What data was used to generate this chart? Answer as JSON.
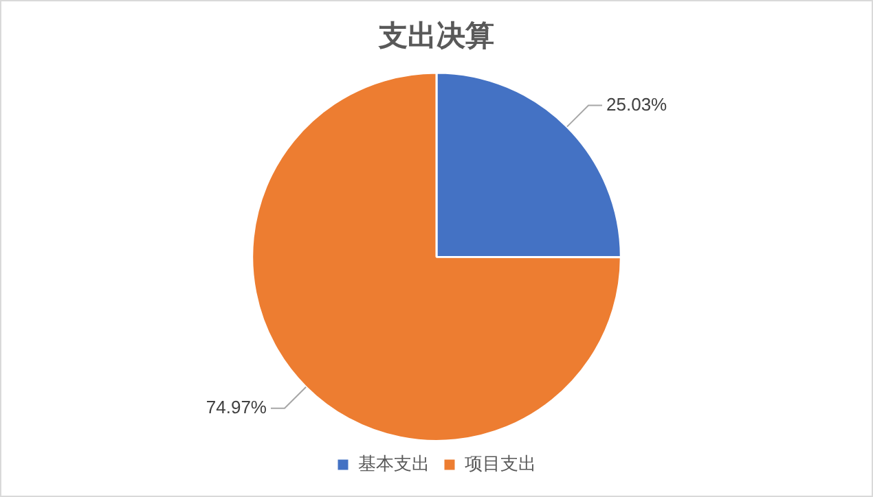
{
  "chart_data": {
    "type": "pie",
    "title": "支出决算",
    "categories": [
      "基本支出",
      "项目支出"
    ],
    "values": [
      25.03,
      74.97
    ],
    "colors": [
      "#4472c4",
      "#ed7d31"
    ],
    "value_labels": [
      "25.03%",
      "74.97%"
    ],
    "legend": "bottom"
  }
}
